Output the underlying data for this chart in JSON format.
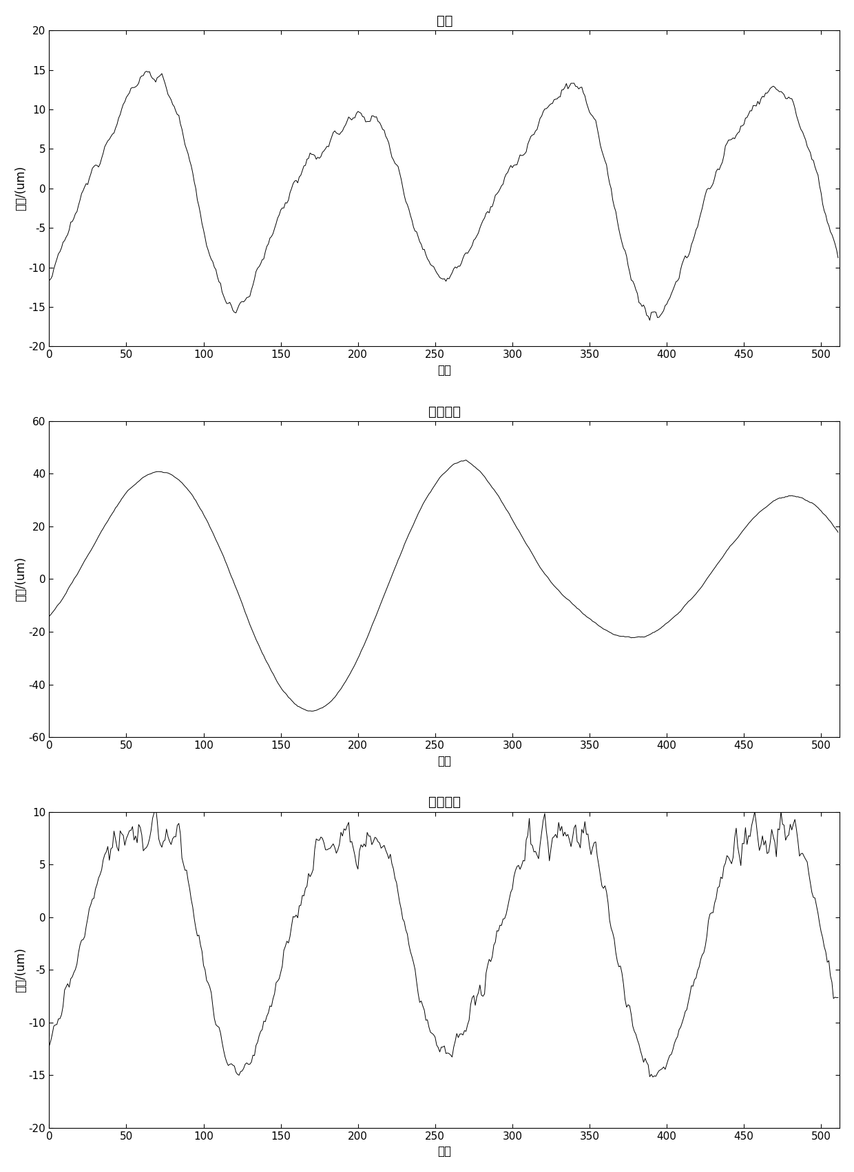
{
  "titles": [
    "正常",
    "气流激振",
    "动静碰磨"
  ],
  "ylabel": "幅値/(um)",
  "xlabel": "时间",
  "n_points": 512,
  "plot1": {
    "ylim": [
      -20,
      20
    ],
    "yticks": [
      -20,
      -15,
      -10,
      -5,
      0,
      5,
      10,
      15,
      20
    ]
  },
  "plot2": {
    "ylim": [
      -60,
      60
    ],
    "yticks": [
      -60,
      -40,
      -20,
      0,
      20,
      40,
      60
    ]
  },
  "plot3": {
    "ylim": [
      -20,
      10
    ],
    "yticks": [
      -20,
      -15,
      -10,
      -5,
      0,
      5,
      10
    ]
  },
  "xlim": [
    0,
    512
  ],
  "xticks": [
    0,
    50,
    100,
    150,
    200,
    250,
    300,
    350,
    400,
    450,
    500
  ],
  "line_color": "#000000",
  "bg_color": "#ffffff",
  "font_size_title": 14,
  "font_size_label": 12,
  "font_size_tick": 11
}
